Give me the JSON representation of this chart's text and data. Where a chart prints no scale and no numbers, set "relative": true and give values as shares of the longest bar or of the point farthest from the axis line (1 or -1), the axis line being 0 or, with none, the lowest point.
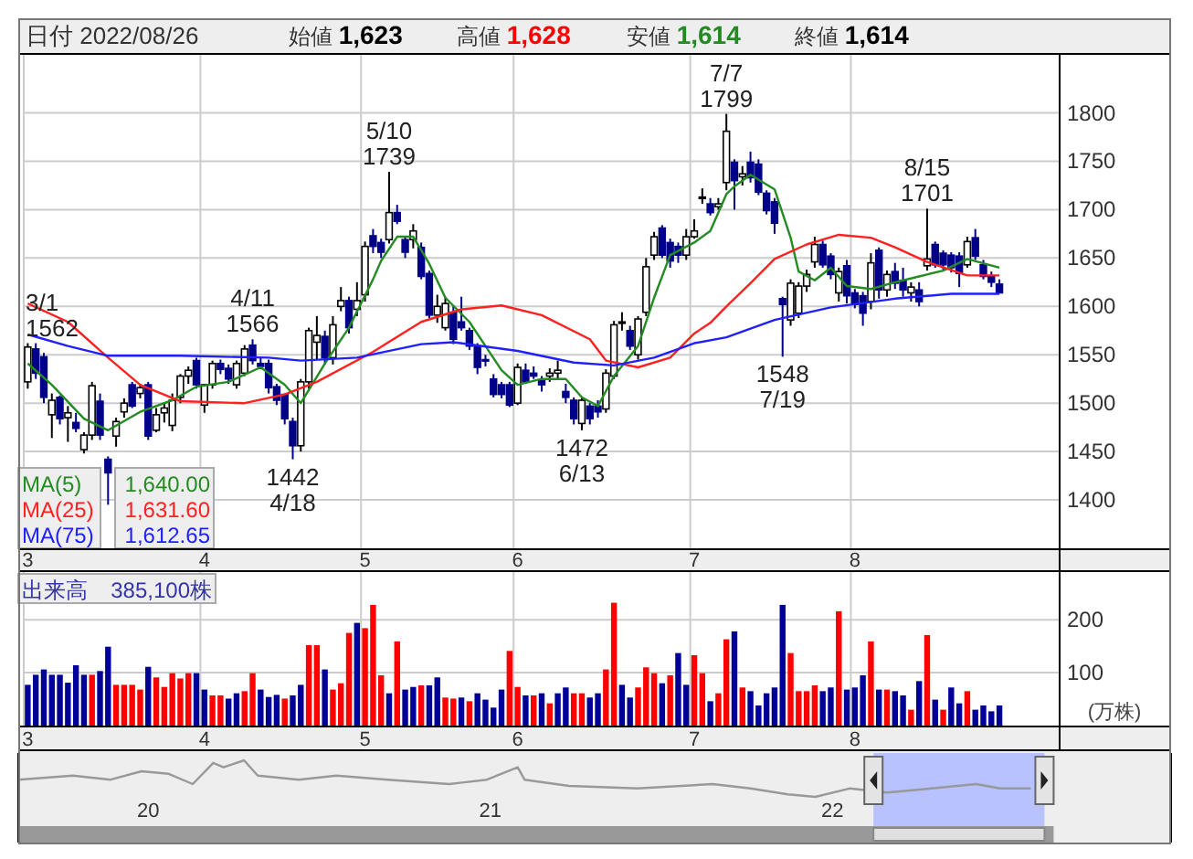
{
  "chart_data": [
    {
      "type": "candlestick",
      "title": "日付 2022/08/26",
      "annotations": [
        "始値 **1,623**",
        "高値 **1,628**",
        "安値 **1,614**",
        "終値 **1,614**",
        "1,640.00",
        "1,631.60",
        "1,612.65",
        {
          "text": "3/1",
          "y": 1562
        },
        {
          "text": "1562",
          "y": 1562
        },
        {
          "text": "4/11",
          "y": 1566
        },
        {
          "text": "1566",
          "y": 1566
        },
        {
          "text": "1442",
          "y": 1442
        },
        {
          "text": "4/18",
          "y": 1442
        },
        {
          "text": "5/10",
          "y": 1739
        },
        {
          "text": "1739",
          "y": 1739
        },
        {
          "text": "1472",
          "y": 1472
        },
        {
          "text": "6/13",
          "y": 1472
        },
        {
          "text": "7/7",
          "y": 1799
        },
        {
          "text": "1799",
          "y": 1799
        },
        {
          "text": "1548",
          "y": 1548
        },
        {
          "text": "7/19",
          "y": 1548
        },
        {
          "text": "8/15",
          "y": 1701
        },
        {
          "text": "1701",
          "y": 1701
        }
      ],
      "categories": [
        "3",
        null,
        null,
        null,
        null,
        null,
        null,
        null,
        null,
        null,
        null,
        null,
        null,
        null,
        null,
        null,
        null,
        null,
        null,
        null,
        null,
        null,
        "4",
        null,
        null,
        null,
        null,
        null,
        null,
        null,
        null,
        null,
        null,
        null,
        null,
        null,
        null,
        null,
        null,
        null,
        null,
        null,
        "5",
        null,
        null,
        null,
        null,
        null,
        null,
        null,
        null,
        null,
        null,
        null,
        null,
        null,
        null,
        null,
        null,
        null,
        null,
        "6",
        null,
        null,
        null,
        null,
        null,
        null,
        null,
        null,
        null,
        null,
        null,
        null,
        null,
        null,
        null,
        null,
        null,
        null,
        null,
        null,
        null,
        "7",
        null,
        null,
        null,
        null,
        null,
        null,
        null,
        null,
        null,
        null,
        null,
        null,
        null,
        null,
        null,
        null,
        null,
        null,
        null,
        "8",
        null,
        null,
        null,
        null,
        null,
        null,
        null,
        null,
        null,
        null,
        null,
        null,
        null,
        null,
        null,
        null,
        null,
        null,
        null,
        null,
        null,
        null,
        null,
        null,
        null
      ],
      "ohlc": [
        [
          1522,
          1562,
          1515,
          1558
        ],
        [
          1556,
          1562,
          1525,
          1531
        ],
        [
          1548,
          1552,
          1500,
          1506
        ],
        [
          1488,
          1510,
          1464,
          1503
        ],
        [
          1506,
          1508,
          1478,
          1484
        ],
        [
          1485,
          1497,
          1460,
          1490
        ],
        [
          1480,
          1490,
          1470,
          1474
        ],
        [
          1452,
          1470,
          1448,
          1467
        ],
        [
          1467,
          1522,
          1462,
          1518
        ],
        [
          1502,
          1510,
          1462,
          1467
        ],
        [
          1442,
          1445,
          1395,
          1428
        ],
        [
          1466,
          1485,
          1455,
          1481
        ],
        [
          1491,
          1505,
          1485,
          1500
        ],
        [
          1519,
          1522,
          1495,
          1497
        ],
        [
          1510,
          1520,
          1505,
          1516
        ],
        [
          1519,
          1522,
          1462,
          1466
        ],
        [
          1472,
          1495,
          1470,
          1488
        ],
        [
          1490,
          1500,
          1480,
          1495
        ],
        [
          1477,
          1510,
          1471,
          1503
        ],
        [
          1506,
          1530,
          1500,
          1528
        ],
        [
          1528,
          1538,
          1520,
          1534
        ],
        [
          1544,
          1547,
          1515,
          1519
        ],
        [
          1498,
          1520,
          1490,
          1519
        ],
        [
          1519,
          1544,
          1515,
          1541
        ],
        [
          1541,
          1545,
          1530,
          1535
        ],
        [
          1536,
          1540,
          1520,
          1525
        ],
        [
          1519,
          1544,
          1515,
          1541
        ],
        [
          1531,
          1560,
          1528,
          1556
        ],
        [
          1560,
          1566,
          1540,
          1544
        ],
        [
          1541,
          1547,
          1535,
          1538
        ],
        [
          1541,
          1545,
          1510,
          1516
        ],
        [
          1517,
          1520,
          1498,
          1503
        ],
        [
          1509,
          1510,
          1478,
          1484
        ],
        [
          1481,
          1485,
          1442,
          1456
        ],
        [
          1456,
          1525,
          1450,
          1522
        ],
        [
          1522,
          1578,
          1515,
          1575
        ],
        [
          1563,
          1590,
          1545,
          1570
        ],
        [
          1569,
          1575,
          1540,
          1547
        ],
        [
          1547,
          1590,
          1540,
          1581
        ],
        [
          1600,
          1620,
          1595,
          1606
        ],
        [
          1606,
          1610,
          1572,
          1578
        ],
        [
          1597,
          1625,
          1590,
          1606
        ],
        [
          1612,
          1667,
          1605,
          1662
        ],
        [
          1673,
          1680,
          1655,
          1662
        ],
        [
          1666,
          1670,
          1650,
          1656
        ],
        [
          1669,
          1739,
          1665,
          1697
        ],
        [
          1697,
          1705,
          1685,
          1688
        ],
        [
          1669,
          1672,
          1650,
          1656
        ],
        [
          1669,
          1685,
          1660,
          1678
        ],
        [
          1661,
          1666,
          1628,
          1631
        ],
        [
          1634,
          1637,
          1588,
          1591
        ],
        [
          1591,
          1612,
          1583,
          1600
        ],
        [
          1578,
          1610,
          1575,
          1603
        ],
        [
          1594,
          1600,
          1561,
          1566
        ],
        [
          1584,
          1610,
          1575,
          1578
        ],
        [
          1575,
          1578,
          1555,
          1559
        ],
        [
          1559,
          1562,
          1530,
          1537
        ],
        [
          1545,
          1550,
          1538,
          1544
        ],
        [
          1525,
          1530,
          1506,
          1509
        ],
        [
          1519,
          1522,
          1505,
          1509
        ],
        [
          1519,
          1522,
          1496,
          1498
        ],
        [
          1500,
          1541,
          1498,
          1537
        ],
        [
          1534,
          1541,
          1520,
          1522
        ],
        [
          1531,
          1538,
          1525,
          1528
        ],
        [
          1523,
          1528,
          1512,
          1519
        ],
        [
          1528,
          1536,
          1522,
          1531
        ],
        [
          1531,
          1544,
          1525,
          1534
        ],
        [
          1512,
          1520,
          1500,
          1506
        ],
        [
          1503,
          1506,
          1478,
          1484
        ],
        [
          1479,
          1506,
          1472,
          1503
        ],
        [
          1497,
          1500,
          1478,
          1484
        ],
        [
          1497,
          1503,
          1485,
          1491
        ],
        [
          1494,
          1535,
          1490,
          1531
        ],
        [
          1528,
          1585,
          1525,
          1581
        ],
        [
          1584,
          1594,
          1575,
          1584
        ],
        [
          1575,
          1580,
          1555,
          1559
        ],
        [
          1550,
          1590,
          1545,
          1587
        ],
        [
          1594,
          1650,
          1590,
          1641
        ],
        [
          1653,
          1677,
          1648,
          1672
        ],
        [
          1681,
          1684,
          1650,
          1653
        ],
        [
          1666,
          1670,
          1640,
          1647
        ],
        [
          1662,
          1666,
          1645,
          1653
        ],
        [
          1653,
          1680,
          1648,
          1672
        ],
        [
          1672,
          1690,
          1670,
          1678
        ],
        [
          1712,
          1722,
          1706,
          1713
        ],
        [
          1706,
          1712,
          1694,
          1697
        ],
        [
          1703,
          1712,
          1700,
          1706
        ],
        [
          1728,
          1799,
          1720,
          1781
        ],
        [
          1749,
          1752,
          1700,
          1730
        ],
        [
          1734,
          1745,
          1725,
          1737
        ],
        [
          1749,
          1760,
          1728,
          1733
        ],
        [
          1747,
          1752,
          1715,
          1718
        ],
        [
          1717,
          1720,
          1695,
          1699
        ],
        [
          1708,
          1712,
          1675,
          1686
        ],
        [
          1608,
          1610,
          1548,
          1602
        ],
        [
          1586,
          1628,
          1580,
          1624
        ],
        [
          1593,
          1625,
          1588,
          1621
        ],
        [
          1621,
          1638,
          1615,
          1633
        ],
        [
          1646,
          1672,
          1640,
          1664
        ],
        [
          1664,
          1668,
          1640,
          1643
        ],
        [
          1652,
          1655,
          1628,
          1633
        ],
        [
          1614,
          1640,
          1605,
          1636
        ],
        [
          1642,
          1648,
          1603,
          1611
        ],
        [
          1614,
          1618,
          1598,
          1602
        ],
        [
          1611,
          1615,
          1580,
          1593
        ],
        [
          1605,
          1655,
          1597,
          1645
        ],
        [
          1658,
          1661,
          1608,
          1617
        ],
        [
          1617,
          1637,
          1610,
          1633
        ],
        [
          1636,
          1645,
          1618,
          1624
        ],
        [
          1627,
          1640,
          1610,
          1617
        ],
        [
          1614,
          1625,
          1605,
          1620
        ],
        [
          1617,
          1625,
          1600,
          1605
        ],
        [
          1642,
          1701,
          1637,
          1649
        ],
        [
          1664,
          1667,
          1640,
          1643
        ],
        [
          1655,
          1658,
          1638,
          1643
        ],
        [
          1653,
          1656,
          1635,
          1640
        ],
        [
          1652,
          1656,
          1620,
          1634
        ],
        [
          1643,
          1672,
          1640,
          1667
        ],
        [
          1671,
          1680,
          1648,
          1652
        ],
        [
          1643,
          1648,
          1628,
          1631
        ],
        [
          1631,
          1636,
          1620,
          1625
        ],
        [
          1623,
          1628,
          1614,
          1614
        ],
        null,
        null,
        null,
        null,
        null,
        null,
        null
      ],
      "series": [
        {
          "name": "MA(5)",
          "type": "line",
          "color": "#228b22",
          "values": [
            1541,
            null,
            null,
            1519,
            null,
            null,
            null,
            1484,
            null,
            null,
            1472,
            null,
            null,
            null,
            1491,
            null,
            null,
            null,
            1503,
            null,
            null,
            1517,
            null,
            null,
            null,
            1522,
            null,
            null,
            null,
            1537,
            null,
            null,
            1519,
            null,
            1500,
            null,
            null,
            1541,
            null,
            null,
            1578,
            null,
            null,
            1628,
            1647,
            null,
            1672,
            null,
            1672,
            null,
            1644,
            null,
            1609,
            null,
            null,
            1584,
            null,
            1559,
            null,
            1534,
            null,
            1519,
            null,
            null,
            1525,
            null,
            null,
            1525,
            null,
            1506,
            null,
            1497,
            null,
            1528,
            null,
            null,
            1559,
            null,
            1609,
            null,
            1653,
            null,
            null,
            1666,
            null,
            1678,
            null,
            1716,
            1724,
            null,
            1736,
            null,
            null,
            1721,
            null,
            1671,
            1636,
            null,
            1627,
            null,
            1640,
            null,
            1621,
            null,
            null,
            1618,
            null,
            null,
            1625,
            null,
            null,
            1631,
            null,
            null,
            1637,
            null,
            null,
            1649,
            null,
            null,
            null,
            1640,
            null,
            null,
            null,
            null,
            null,
            null,
            null
          ]
        },
        {
          "name": "MA(25)",
          "type": "line",
          "color": "#ff2020",
          "values": [
            1603,
            null,
            null,
            null,
            null,
            1584,
            null,
            null,
            null,
            null,
            1547,
            null,
            null,
            null,
            1519,
            null,
            null,
            null,
            null,
            1502,
            null,
            null,
            null,
            null,
            null,
            null,
            null,
            1500,
            null,
            null,
            null,
            null,
            1509,
            null,
            null,
            null,
            1522,
            null,
            null,
            null,
            null,
            null,
            null,
            1553,
            null,
            null,
            null,
            null,
            null,
            1584,
            null,
            null,
            null,
            null,
            1597,
            null,
            null,
            null,
            null,
            1601,
            null,
            null,
            null,
            null,
            1591,
            null,
            null,
            null,
            null,
            null,
            1566,
            null,
            1544,
            null,
            null,
            null,
            1537,
            null,
            null,
            null,
            1547,
            null,
            null,
            1572,
            null,
            1583,
            null,
            1600,
            null,
            null,
            1624,
            null,
            null,
            1649,
            null,
            null,
            null,
            1664,
            null,
            null,
            null,
            1674,
            null,
            null,
            null,
            1671,
            null,
            null,
            1661,
            null,
            null,
            null,
            1646,
            null,
            null,
            null,
            null,
            1632,
            null,
            null,
            null,
            1632,
            null,
            null,
            null,
            null,
            null,
            null,
            null
          ]
        },
        {
          "name": "MA(75)",
          "type": "line",
          "color": "#2020ff",
          "values": [
            1571,
            null,
            null,
            null,
            null,
            1559,
            null,
            null,
            null,
            null,
            1549,
            null,
            null,
            null,
            null,
            null,
            null,
            null,
            null,
            1549,
            null,
            null,
            null,
            null,
            null,
            null,
            null,
            null,
            null,
            null,
            1547,
            null,
            null,
            null,
            1544,
            null,
            null,
            null,
            null,
            null,
            null,
            1547,
            null,
            null,
            null,
            null,
            null,
            null,
            null,
            1561,
            null,
            null,
            null,
            1563,
            null,
            null,
            null,
            null,
            null,
            null,
            null,
            1554,
            null,
            null,
            null,
            null,
            null,
            null,
            1542,
            null,
            null,
            null,
            null,
            1539,
            null,
            null,
            null,
            null,
            1547,
            null,
            null,
            null,
            null,
            1562,
            null,
            null,
            null,
            1568,
            null,
            null,
            null,
            null,
            null,
            1586,
            null,
            null,
            null,
            null,
            null,
            null,
            1599,
            null,
            null,
            null,
            null,
            null,
            null,
            null,
            1608,
            null,
            null,
            null,
            null,
            null,
            null,
            1613,
            null,
            null,
            null,
            null,
            null,
            1613,
            null,
            null,
            null,
            null,
            null,
            null,
            null
          ]
        }
      ],
      "ylim": [
        1350,
        1860
      ],
      "yticks": [
        1400,
        1450,
        1500,
        1550,
        1600,
        1650,
        1700,
        1750,
        1800
      ],
      "grid": true,
      "legend": "bottom left"
    },
    {
      "type": "bar",
      "title": "出来高",
      "annotations": [
        "385,100株"
      ],
      "ylabel": "(万株)",
      "categories": [
        "3",
        null,
        null,
        null,
        null,
        null,
        null,
        null,
        null,
        null,
        null,
        null,
        null,
        null,
        null,
        null,
        null,
        null,
        null,
        null,
        null,
        null,
        "4",
        null,
        null,
        null,
        null,
        null,
        null,
        null,
        null,
        null,
        null,
        null,
        null,
        null,
        null,
        null,
        null,
        null,
        null,
        null,
        "5",
        null,
        null,
        null,
        null,
        null,
        null,
        null,
        null,
        null,
        null,
        null,
        null,
        null,
        null,
        null,
        null,
        null,
        null,
        "6",
        null,
        null,
        null,
        null,
        null,
        null,
        null,
        null,
        null,
        null,
        null,
        null,
        null,
        null,
        null,
        null,
        null,
        null,
        null,
        null,
        null,
        "7",
        null,
        null,
        null,
        null,
        null,
        null,
        null,
        null,
        null,
        null,
        null,
        null,
        null,
        null,
        null,
        null,
        null,
        null,
        null,
        "8",
        null,
        null,
        null,
        null,
        null,
        null,
        null,
        null,
        null,
        null,
        null,
        null,
        null,
        null,
        null,
        null,
        null,
        null,
        null,
        null,
        null,
        null,
        null,
        null,
        null
      ],
      "values": [
        77,
        96,
        106,
        96,
        96,
        81,
        114,
        96,
        96,
        103,
        149,
        77,
        77,
        77,
        68,
        111,
        91,
        73,
        99,
        89,
        99,
        99,
        68,
        57,
        57,
        51,
        61,
        65,
        99,
        68,
        54,
        58,
        51,
        57,
        77,
        152,
        152,
        106,
        68,
        80,
        175,
        194,
        184,
        228,
        95,
        61,
        159,
        68,
        73,
        76,
        76,
        91,
        53,
        51,
        53,
        46,
        61,
        49,
        34,
        68,
        141,
        73,
        57,
        57,
        61,
        42,
        61,
        72,
        61,
        61,
        53,
        61,
        106,
        232,
        77,
        53,
        72,
        110,
        99,
        80,
        95,
        137,
        77,
        133,
        99,
        46,
        61,
        163,
        178,
        72,
        65,
        38,
        61,
        72,
        228,
        137,
        65,
        65,
        76,
        65,
        72,
        216,
        68,
        72,
        95,
        159,
        68,
        68,
        65,
        57,
        30,
        84,
        171,
        49,
        30,
        72,
        42,
        65,
        30,
        38,
        27,
        38,
        null,
        null,
        null,
        null,
        null,
        null,
        null
      ],
      "colors": [
        "#000099",
        "#000099",
        "#000099",
        "#000099",
        "#000099",
        "#000099",
        "#000099",
        "#000099",
        "#ff0000",
        "#000099",
        "#000099",
        "#ff0000",
        "#ff0000",
        "#ff0000",
        "#ff0000",
        "#000099",
        "#ff0000",
        "#ff0000",
        "#ff0000",
        "#ff0000",
        "#ff0000",
        "#000099",
        "#000099",
        "#ff0000",
        "#ff0000",
        "#000099",
        "#000099",
        "#ff0000",
        "#ff0000",
        "#000099",
        "#000099",
        "#000099",
        "#ff0000",
        "#000099",
        "#000099",
        "#ff0000",
        "#ff0000",
        "#000099",
        "#ff0000",
        "#ff0000",
        "#ff0000",
        "#000099",
        "#ff0000",
        "#ff0000",
        "#ff0000",
        "#000099",
        "#ff0000",
        "#000099",
        "#000099",
        "#ff0000",
        "#000099",
        "#000099",
        "#ff0000",
        "#ff0000",
        "#000099",
        "#ff0000",
        "#000099",
        "#000099",
        "#000099",
        "#000099",
        "#ff0000",
        "#ff0000",
        "#000099",
        "#ff0000",
        "#000099",
        "#ff0000",
        "#000099",
        "#000099",
        "#ff0000",
        "#ff0000",
        "#000099",
        "#000099",
        "#ff0000",
        "#ff0000",
        "#000099",
        "#000099",
        "#ff0000",
        "#ff0000",
        "#ff0000",
        "#000099",
        "#ff0000",
        "#000099",
        "#000099",
        "#ff0000",
        "#ff0000",
        "#000099",
        "#ff0000",
        "#ff0000",
        "#000099",
        "#ff0000",
        "#000099",
        "#000099",
        "#000099",
        "#000099",
        "#000099",
        "#ff0000",
        "#ff0000",
        "#ff0000",
        "#ff0000",
        "#000099",
        "#000099",
        "#ff0000",
        "#000099",
        "#000099",
        "#000099",
        "#ff0000",
        "#000099",
        "#ff0000",
        "#000099",
        "#000099",
        "#ff0000",
        "#000099",
        "#ff0000",
        "#000099",
        "#ff0000",
        "#000099",
        "#000099",
        "#ff0000",
        "#000099",
        "#000099",
        "#000099",
        "#000099",
        null,
        null,
        null,
        null,
        null,
        null,
        null
      ],
      "ylim": [
        0,
        290
      ],
      "yticks": [
        100,
        200
      ],
      "grid": true
    },
    {
      "type": "line",
      "relative": true,
      "color": "#999999",
      "x": [
        19.62,
        19.78,
        19.89,
        19.98,
        20.06,
        20.13,
        20.19,
        20.22,
        20.28,
        20.32,
        20.44,
        20.55,
        20.7,
        20.88,
        20.99,
        21.08,
        21.1,
        21.23,
        21.43,
        21.65,
        21.76,
        21.87,
        21.95,
        22.05,
        22.16,
        22.29,
        22.42,
        22.49,
        22.58
      ],
      "values": [
        0.47,
        0.58,
        0.47,
        0.7,
        0.63,
        0.35,
        0.93,
        0.81,
        1.0,
        0.58,
        0.47,
        0.58,
        0.47,
        0.35,
        0.47,
        0.81,
        0.47,
        0.3,
        0.23,
        0.35,
        0.23,
        0.07,
        0,
        0.23,
        0.12,
        0.23,
        0.35,
        0.23,
        0.23
      ],
      "xlim": [
        19.62,
        22.99
      ],
      "xticks": [
        20,
        21,
        22
      ],
      "bands": [
        {
          "axis": "x",
          "from": 22.12,
          "to": 22.62,
          "color": "#b8c2ff"
        }
      ]
    }
  ]
}
